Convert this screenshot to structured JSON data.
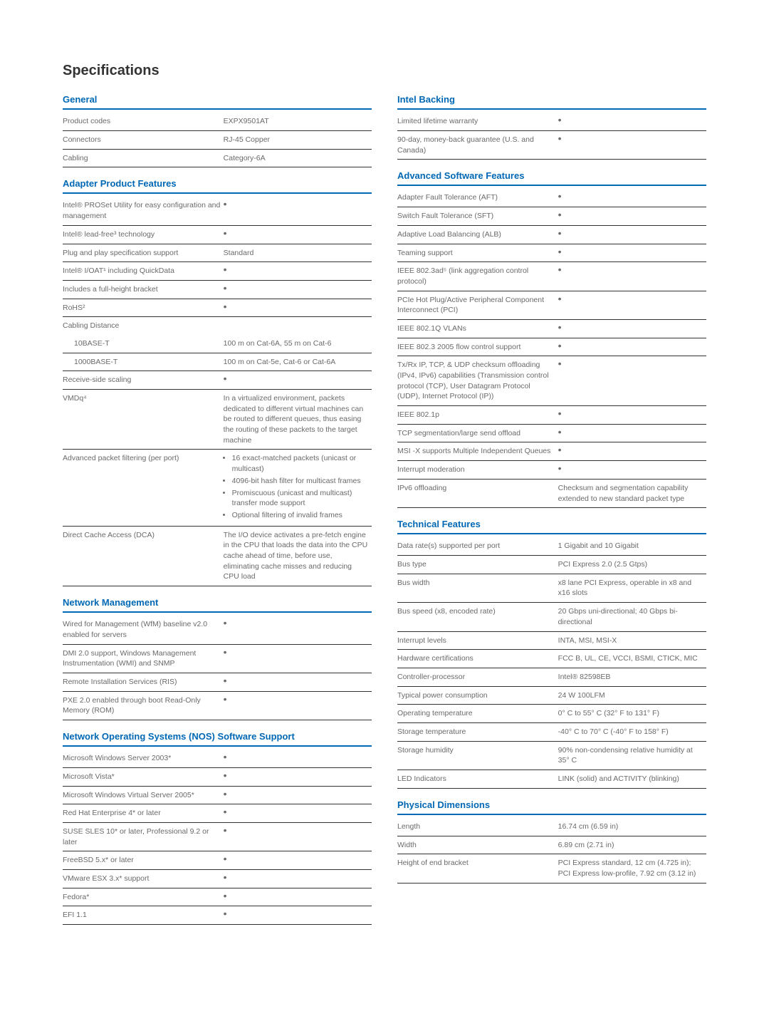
{
  "page_title": "Specifications",
  "colors": {
    "accent": "#0068b5",
    "text": "#6a6a6a",
    "rule": "#333333"
  },
  "left": [
    {
      "heading": "General",
      "rows": [
        {
          "label": "Product codes",
          "value": "EXPX9501AT"
        },
        {
          "label": "Connectors",
          "value": "RJ-45 Copper"
        },
        {
          "label": "Cabling",
          "value": "Category-6A"
        }
      ]
    },
    {
      "heading": "Adapter Product Features",
      "rows": [
        {
          "label": "Intel® PROSet Utility for easy configuration and management",
          "value": "•"
        },
        {
          "label": "Intel® lead-free³ technology",
          "value": "•"
        },
        {
          "label": "Plug and play specification support",
          "value": "Standard"
        },
        {
          "label": "Intel® I/OAT¹ including QuickData",
          "value": "•"
        },
        {
          "label": "Includes a full-height bracket",
          "value": "•"
        },
        {
          "label": "RoHS²",
          "value": "•"
        },
        {
          "label": "Cabling Distance",
          "value": "",
          "noborder": true
        },
        {
          "label": "10BASE-T",
          "value": "100 m on Cat-6A, 55 m on Cat-6",
          "sub": true
        },
        {
          "label": "1000BASE-T",
          "value": "100 m on Cat-5e, Cat-6 or Cat-6A",
          "sub": true
        },
        {
          "label": "Receive-side scaling",
          "value": "•"
        },
        {
          "label": "VMDq⁴",
          "value": "In a virtualized environment, packets dedicated to different virtual machines can be routed to different queues, thus easing the routing of these packets to the target machine"
        },
        {
          "label": "Advanced packet filtering (per port)",
          "value_list": [
            "16 exact-matched packets (unicast or multicast)",
            "4096-bit hash filter for multicast frames",
            "Promiscuous (unicast and multicast) transfer mode support",
            "Optional filtering of invalid frames"
          ]
        },
        {
          "label": "Direct Cache Access (DCA)",
          "value": "The I/O device activates a pre-fetch engine in the CPU that loads the data into the CPU cache ahead of time, before use, eliminating cache misses and reducing CPU load"
        }
      ]
    },
    {
      "heading": "Network Management",
      "rows": [
        {
          "label": "Wired for Management (WfM) baseline v2.0 enabled for servers",
          "value": "•"
        },
        {
          "label": "DMI 2.0 support, Windows Management Instrumentation (WMI) and SNMP",
          "value": "•"
        },
        {
          "label": "Remote Installation Services (RIS)",
          "value": "•"
        },
        {
          "label": "PXE 2.0 enabled through boot Read-Only Memory (ROM)",
          "value": "•"
        }
      ]
    },
    {
      "heading": "Network Operating Systems (NOS) Software Support",
      "rows": [
        {
          "label": "Microsoft Windows Server 2003*",
          "value": "•"
        },
        {
          "label": "Microsoft Vista*",
          "value": "•"
        },
        {
          "label": "Microsoft Windows Virtual Server 2005*",
          "value": "•"
        },
        {
          "label": "Red Hat Enterprise 4* or later",
          "value": "•"
        },
        {
          "label": "SUSE SLES 10* or later, Professional 9.2 or later",
          "value": "•"
        },
        {
          "label": "FreeBSD 5.x* or later",
          "value": "•"
        },
        {
          "label": "VMware ESX 3.x* support",
          "value": "•"
        },
        {
          "label": "Fedora*",
          "value": "•"
        },
        {
          "label": "EFI 1.1",
          "value": "•"
        }
      ]
    }
  ],
  "right": [
    {
      "heading": "Intel Backing",
      "rows": [
        {
          "label": "Limited lifetime warranty",
          "value": "•"
        },
        {
          "label": "90-day, money-back guarantee (U.S. and Canada)",
          "value": "•"
        }
      ]
    },
    {
      "heading": "Advanced Software Features",
      "rows": [
        {
          "label": "Adapter Fault Tolerance (AFT)",
          "value": "•"
        },
        {
          "label": "Switch Fault Tolerance (SFT)",
          "value": "•"
        },
        {
          "label": "Adaptive Load Balancing (ALB)",
          "value": "•"
        },
        {
          "label": "Teaming support",
          "value": "•"
        },
        {
          "label": "IEEE 802.3ad⁵ (link aggregation control protocol)",
          "value": "•"
        },
        {
          "label": "PCIe Hot Plug/Active Peripheral Component Interconnect (PCI)",
          "value": "•"
        },
        {
          "label": "IEEE 802.1Q VLANs",
          "value": "•"
        },
        {
          "label": "IEEE 802.3 2005 flow control support",
          "value": "•"
        },
        {
          "label": "Tx/Rx IP, TCP, & UDP checksum offloading (IPv4, IPv6) capabilities (Transmission control protocol (TCP), User Datagram Protocol (UDP), Internet Protocol (IP))",
          "value": "•"
        },
        {
          "label": "IEEE 802.1p",
          "value": "•"
        },
        {
          "label": "TCP segmentation/large send offload",
          "value": "•"
        },
        {
          "label": "MSI -X supports Multiple Independent Queues",
          "value": "•"
        },
        {
          "label": "Interrupt moderation",
          "value": "•"
        },
        {
          "label": "IPv6 offloading",
          "value": "Checksum and segmentation capability extended to new standard packet type"
        }
      ]
    },
    {
      "heading": "Technical Features",
      "rows": [
        {
          "label": "Data rate(s) supported per port",
          "value": "1 Gigabit and 10 Gigabit"
        },
        {
          "label": "Bus type",
          "value": "PCI Express 2.0 (2.5 Gtps)"
        },
        {
          "label": "Bus width",
          "value": "x8 lane PCI Express, operable in x8 and x16 slots"
        },
        {
          "label": "Bus speed (x8, encoded rate)",
          "value": "20 Gbps uni-directional; 40 Gbps bi-directional"
        },
        {
          "label": "Interrupt levels",
          "value": "INTA, MSI, MSI-X"
        },
        {
          "label": "Hardware certifications",
          "value": "FCC B, UL, CE, VCCI, BSMI, CTICK, MIC"
        },
        {
          "label": "Controller-processor",
          "value": "Intel® 82598EB"
        },
        {
          "label": "Typical power consumption",
          "value": "24 W 100LFM"
        },
        {
          "label": "Operating temperature",
          "value": "0° C to 55° C (32° F to 131° F)"
        },
        {
          "label": "Storage temperature",
          "value": "-40° C to 70° C (-40° F to 158° F)"
        },
        {
          "label": "Storage humidity",
          "value": "90% non-condensing relative humidity at 35° C"
        },
        {
          "label": "LED Indicators",
          "value": "LINK (solid) and ACTIVITY (blinking)"
        }
      ]
    },
    {
      "heading": "Physical Dimensions",
      "rows": [
        {
          "label": "Length",
          "value": "16.74 cm (6.59 in)"
        },
        {
          "label": "Width",
          "value": "6.89 cm (2.71 in)"
        },
        {
          "label": "Height of end bracket",
          "value": "PCI Express standard, 12 cm (4.725 in); PCI Express low-profile, 7.92 cm (3.12 in)"
        }
      ]
    }
  ]
}
